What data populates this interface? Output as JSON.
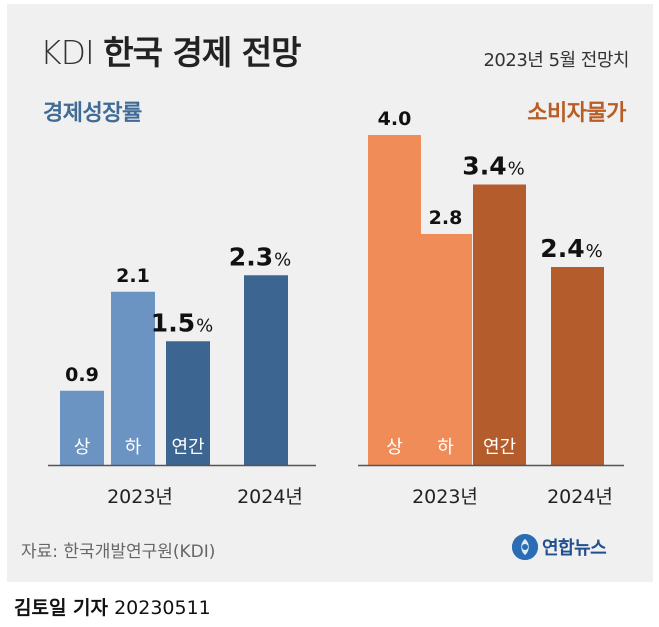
{
  "title_prefix": "KDI",
  "title_main": "한국 경제 전망",
  "subtitle": "2023년 5월 전망치",
  "source": "자료: 한국개발연구원(KDI)",
  "logo_text": "연합뉴스",
  "byline_name": "김토일 기자",
  "byline_date": "20230511",
  "colors": {
    "left_light": "#6c94c3",
    "left_dark": "#3c6592",
    "right_light": "#ef8c58",
    "right_dark": "#b55c2c"
  },
  "chart_data": [
    {
      "type": "bar",
      "title": "경제성장률",
      "unit": "%",
      "groups": [
        {
          "label": "2023년",
          "bars": [
            {
              "label": "상",
              "value": 0.9,
              "display": "0.9"
            },
            {
              "label": "하",
              "value": 2.1,
              "display": "2.1"
            },
            {
              "label": "연간",
              "value": 1.5,
              "display": "1.5"
            }
          ]
        },
        {
          "label": "2024년",
          "bars": [
            {
              "label": "",
              "value": 2.3,
              "display": "2.3"
            }
          ]
        }
      ]
    },
    {
      "type": "bar",
      "title": "소비자물가",
      "unit": "%",
      "groups": [
        {
          "label": "2023년",
          "bars": [
            {
              "label": "상",
              "value": 4.0,
              "display": "4.0"
            },
            {
              "label": "하",
              "value": 2.8,
              "display": "2.8"
            },
            {
              "label": "연간",
              "value": 3.4,
              "display": "3.4"
            }
          ]
        },
        {
          "label": "2024년",
          "bars": [
            {
              "label": "",
              "value": 2.4,
              "display": "2.4"
            }
          ]
        }
      ]
    }
  ]
}
